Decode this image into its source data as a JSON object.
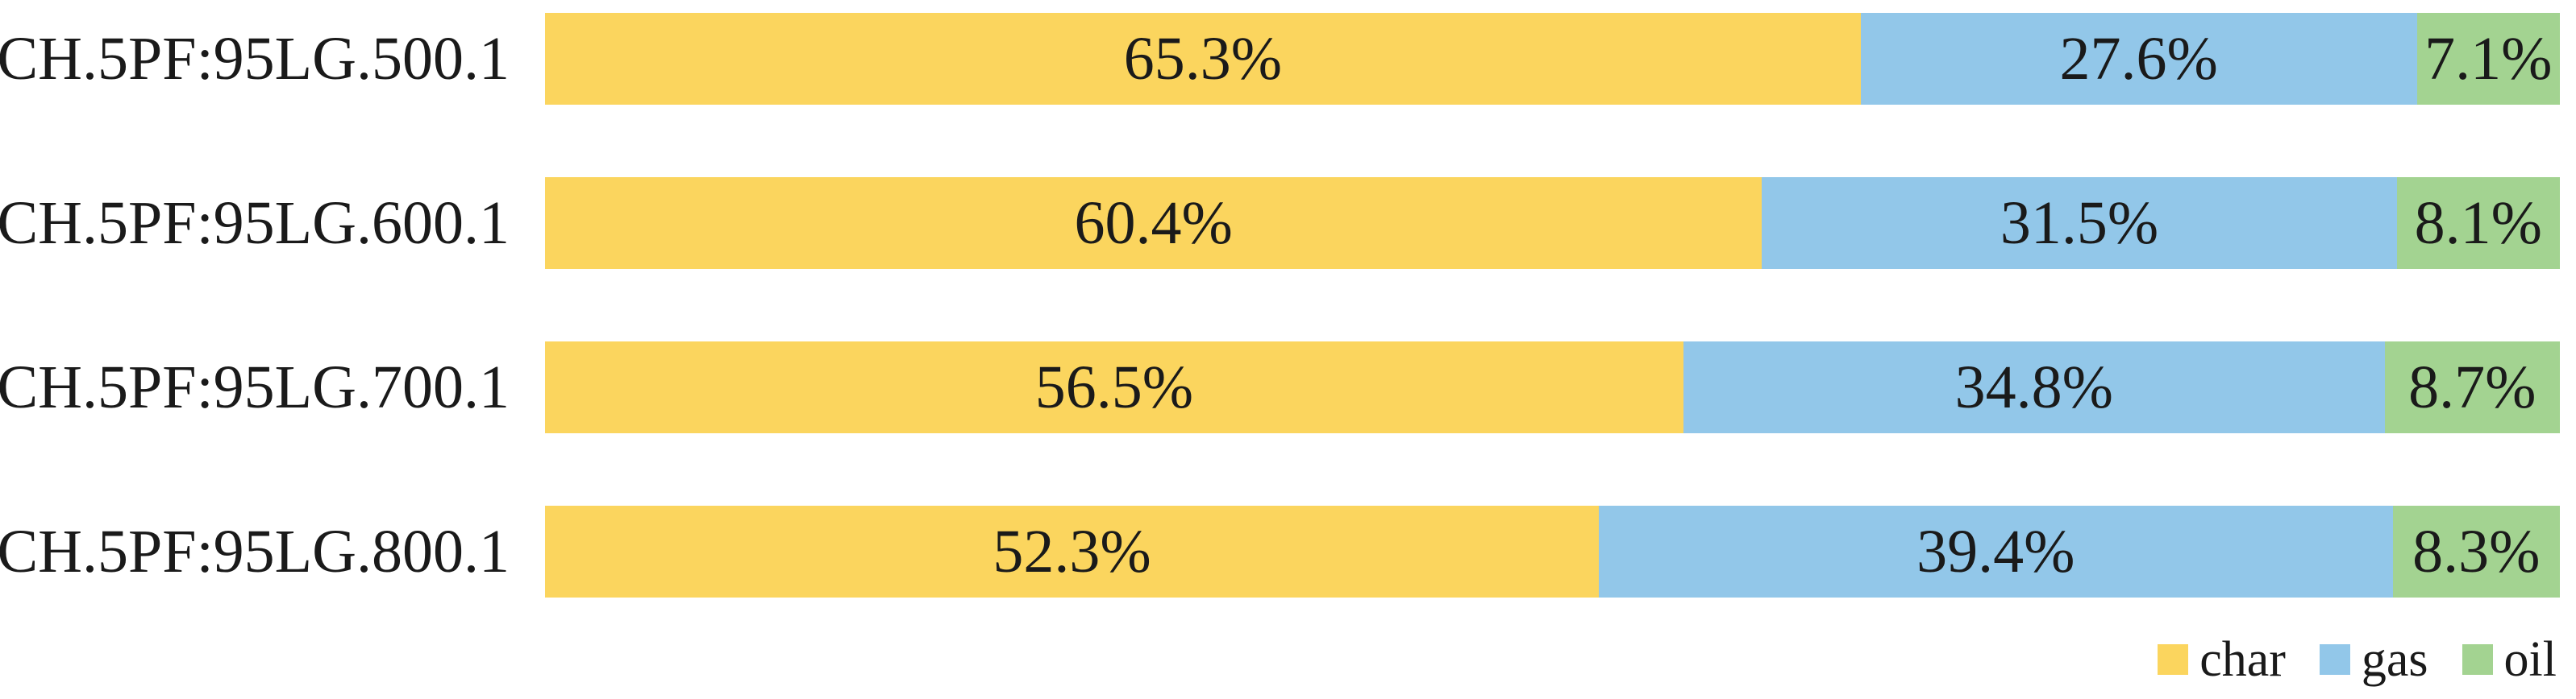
{
  "chart_data": {
    "type": "bar",
    "orientation": "horizontal",
    "stacked": true,
    "unit": "%",
    "title": "",
    "xlabel": "",
    "ylabel": "",
    "xlim": [
      0,
      100
    ],
    "grid": false,
    "value_labels": "inside-center",
    "categories": [
      "CH.5PF:95LG.500.1",
      "CH.5PF:95LG.600.1",
      "CH.5PF:95LG.700.1",
      "CH.5PF:95LG.800.1"
    ],
    "series": [
      {
        "name": "char",
        "color": "#FBD55E",
        "values": [
          65.3,
          60.4,
          56.5,
          52.3
        ]
      },
      {
        "name": "gas",
        "color": "#92C7E9",
        "values": [
          27.6,
          31.5,
          34.8,
          39.4
        ]
      },
      {
        "name": "oil",
        "color": "#A3D391",
        "values": [
          7.1,
          8.1,
          8.7,
          8.3
        ]
      }
    ],
    "value_label_texts": [
      [
        "65.3%",
        "27.6%",
        "7.1%"
      ],
      [
        "60.4%",
        "31.5%",
        "8.1%"
      ],
      [
        "56.5%",
        "34.8%",
        "8.7%"
      ],
      [
        "52.3%",
        "39.4%",
        "8.3%"
      ]
    ],
    "legend": {
      "position": "bottom-right",
      "entries": [
        "char",
        "gas",
        "oil"
      ]
    }
  },
  "colors": {
    "text": "#1a1a1a",
    "background": "#ffffff"
  }
}
